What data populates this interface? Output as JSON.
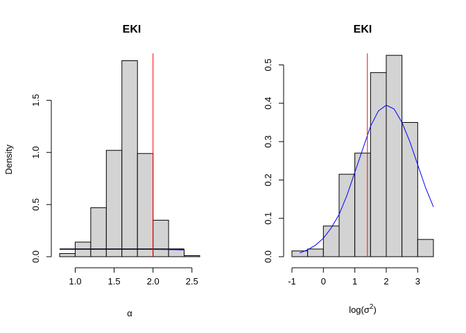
{
  "chart_data": [
    {
      "type": "bar",
      "subtype": "histogram",
      "title": "EKI",
      "xlabel": "α",
      "ylabel": "Density",
      "xlim": [
        0.8,
        2.6
      ],
      "ylim": [
        0,
        1.95
      ],
      "x_ticks": [
        1.0,
        1.5,
        2.0,
        2.5
      ],
      "x_tick_labels": [
        "1.0",
        "1.5",
        "2.0",
        "2.5"
      ],
      "y_ticks": [
        0.0,
        0.5,
        1.0,
        1.5
      ],
      "y_tick_labels": [
        "0.0",
        "0.5",
        "1.0",
        "1.5"
      ],
      "bins": [
        {
          "x0": 0.8,
          "x1": 1.0,
          "density": 0.03
        },
        {
          "x0": 1.0,
          "x1": 1.2,
          "density": 0.14
        },
        {
          "x0": 1.2,
          "x1": 1.4,
          "density": 0.47
        },
        {
          "x0": 1.4,
          "x1": 1.6,
          "density": 1.02
        },
        {
          "x0": 1.6,
          "x1": 1.8,
          "density": 1.88
        },
        {
          "x0": 1.8,
          "x1": 2.0,
          "density": 0.99
        },
        {
          "x0": 2.0,
          "x1": 2.2,
          "density": 0.35
        },
        {
          "x0": 2.2,
          "x1": 2.4,
          "density": 0.07
        },
        {
          "x0": 2.4,
          "x1": 2.6,
          "density": 0.01
        }
      ],
      "reference_line_x": 2.0,
      "black_line": {
        "x": [
          0.8,
          2.4
        ],
        "y": [
          0.075,
          0.075
        ]
      },
      "density_curve": {
        "x": [
          0.8,
          1.2,
          1.6,
          2.0,
          2.4
        ],
        "y": [
          0.07,
          0.07,
          0.07,
          0.07,
          0.065
        ]
      },
      "bar_fill": "#d3d3d3",
      "ref_color": "#ff0000",
      "curve_color": "#0000ff",
      "grid": false
    },
    {
      "type": "bar",
      "subtype": "histogram",
      "title": "EKI",
      "xlabel": "log(σ",
      "xlabel_sup": "2",
      "xlabel_close": ")",
      "ylabel": "",
      "xlim": [
        -1,
        3.5
      ],
      "ylim": [
        0,
        0.53
      ],
      "x_ticks": [
        -1,
        0,
        1,
        2,
        3
      ],
      "x_tick_labels": [
        "-1",
        "0",
        "1",
        "2",
        "3"
      ],
      "y_ticks": [
        0.0,
        0.1,
        0.2,
        0.3,
        0.4,
        0.5
      ],
      "y_tick_labels": [
        "0.0",
        "0.1",
        "0.2",
        "0.3",
        "0.4",
        "0.5"
      ],
      "bins": [
        {
          "x0": -1.0,
          "x1": -0.5,
          "density": 0.015
        },
        {
          "x0": -0.5,
          "x1": 0.0,
          "density": 0.02
        },
        {
          "x0": 0.0,
          "x1": 0.5,
          "density": 0.08
        },
        {
          "x0": 0.5,
          "x1": 1.0,
          "density": 0.215
        },
        {
          "x0": 1.0,
          "x1": 1.5,
          "density": 0.27
        },
        {
          "x0": 1.5,
          "x1": 2.0,
          "density": 0.48
        },
        {
          "x0": 2.0,
          "x1": 2.5,
          "density": 0.525
        },
        {
          "x0": 2.5,
          "x1": 3.0,
          "density": 0.35
        },
        {
          "x0": 3.0,
          "x1": 3.5,
          "density": 0.045
        }
      ],
      "reference_line_x": 1.4,
      "density_curve": {
        "x": [
          -0.75,
          -0.5,
          -0.25,
          0,
          0.25,
          0.5,
          0.75,
          1,
          1.25,
          1.5,
          1.75,
          2,
          2.25,
          2.5,
          2.75,
          3,
          3.25,
          3.5
        ],
        "y": [
          0.01,
          0.018,
          0.03,
          0.048,
          0.075,
          0.11,
          0.16,
          0.22,
          0.28,
          0.34,
          0.38,
          0.395,
          0.385,
          0.35,
          0.3,
          0.24,
          0.18,
          0.13
        ]
      },
      "bar_fill": "#d3d3d3",
      "ref_color": "#ff0000",
      "curve_color": "#0000ff",
      "grid": false
    }
  ]
}
